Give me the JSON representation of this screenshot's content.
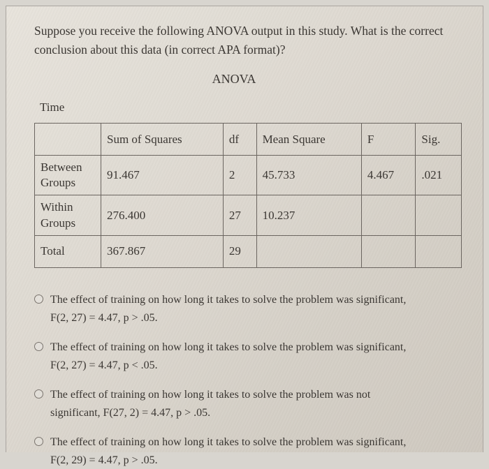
{
  "question": "Suppose you receive the following ANOVA output in this study. What is the correct conclusion about this data (in correct APA format)?",
  "anova": {
    "title": "ANOVA",
    "time_label": "Time",
    "columns": [
      "",
      "Sum of Squares",
      "df",
      "Mean Square",
      "F",
      "Sig."
    ],
    "rows": [
      {
        "label": "Between Groups",
        "ss": "91.467",
        "df": "2",
        "ms": "45.733",
        "f": "4.467",
        "sig": ".021"
      },
      {
        "label": "Within Groups",
        "ss": "276.400",
        "df": "27",
        "ms": "10.237",
        "f": "",
        "sig": ""
      },
      {
        "label": "Total",
        "ss": "367.867",
        "df": "29",
        "ms": "",
        "f": "",
        "sig": ""
      }
    ],
    "border_color": "#6b6560",
    "font_size_pt": 13
  },
  "options": [
    {
      "main": "The effect of training on how long it takes to solve the problem was significant,",
      "sub": "F(2, 27) = 4.47, p > .05."
    },
    {
      "main": "The effect of training on how long it takes to solve the problem was significant,",
      "sub": "F(2, 27) = 4.47, p < .05."
    },
    {
      "main": "The effect of training on how long it takes to solve the problem was not",
      "sub": "significant, F(27, 2) = 4.47, p > .05."
    },
    {
      "main": "The effect of training on how long it takes to solve the problem was significant,",
      "sub": "F(2, 29) = 4.47, p > .05."
    }
  ],
  "colors": {
    "page_bg_outer": "#d8d5cf",
    "page_bg_inner": "#e2ddd5",
    "text": "#3a3632"
  }
}
